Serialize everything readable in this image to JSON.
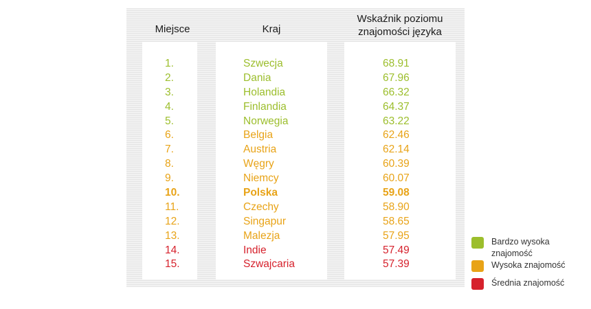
{
  "colors": {
    "very_high": "#9cbe2c",
    "high": "#e8a317",
    "medium": "#d6212c"
  },
  "headers": {
    "place": "Miejsce",
    "country": "Kraj",
    "value_line1": "Wskaźnik poziomu",
    "value_line2": "znajomości języka"
  },
  "chart_data": {
    "type": "table",
    "columns": [
      "Miejsce",
      "Kraj",
      "Wskaźnik poziomu znajomości języka"
    ],
    "rows": [
      {
        "place": "1.",
        "country": "Szwecja",
        "value": "68.91",
        "level": "very_high"
      },
      {
        "place": "2.",
        "country": "Dania",
        "value": "67.96",
        "level": "very_high"
      },
      {
        "place": "3.",
        "country": "Holandia",
        "value": "66.32",
        "level": "very_high"
      },
      {
        "place": "4.",
        "country": "Finlandia",
        "value": "64.37",
        "level": "very_high"
      },
      {
        "place": "5.",
        "country": "Norwegia",
        "value": "63.22",
        "level": "very_high"
      },
      {
        "place": "6.",
        "country": "Belgia",
        "value": "62.46",
        "level": "high"
      },
      {
        "place": "7.",
        "country": "Austria",
        "value": "62.14",
        "level": "high"
      },
      {
        "place": "8.",
        "country": "Węgry",
        "value": "60.39",
        "level": "high"
      },
      {
        "place": "9.",
        "country": "Niemcy",
        "value": "60.07",
        "level": "high"
      },
      {
        "place": "10.",
        "country": "Polska",
        "value": "59.08",
        "level": "high",
        "highlight": true
      },
      {
        "place": "11.",
        "country": "Czechy",
        "value": "58.90",
        "level": "high"
      },
      {
        "place": "12.",
        "country": "Singapur",
        "value": "58.65",
        "level": "high"
      },
      {
        "place": "13.",
        "country": "Malezja",
        "value": "57.95",
        "level": "high"
      },
      {
        "place": "14.",
        "country": "Indie",
        "value": "57.49",
        "level": "medium"
      },
      {
        "place": "15.",
        "country": "Szwajcaria",
        "value": "57.39",
        "level": "medium"
      }
    ]
  },
  "legend": [
    {
      "level": "very_high",
      "line1": "Bardzo wysoka",
      "line2": "znajomość"
    },
    {
      "level": "high",
      "line1": "Wysoka znajomość",
      "line2": ""
    },
    {
      "level": "medium",
      "line1": "Średnia znajomość",
      "line2": ""
    }
  ]
}
